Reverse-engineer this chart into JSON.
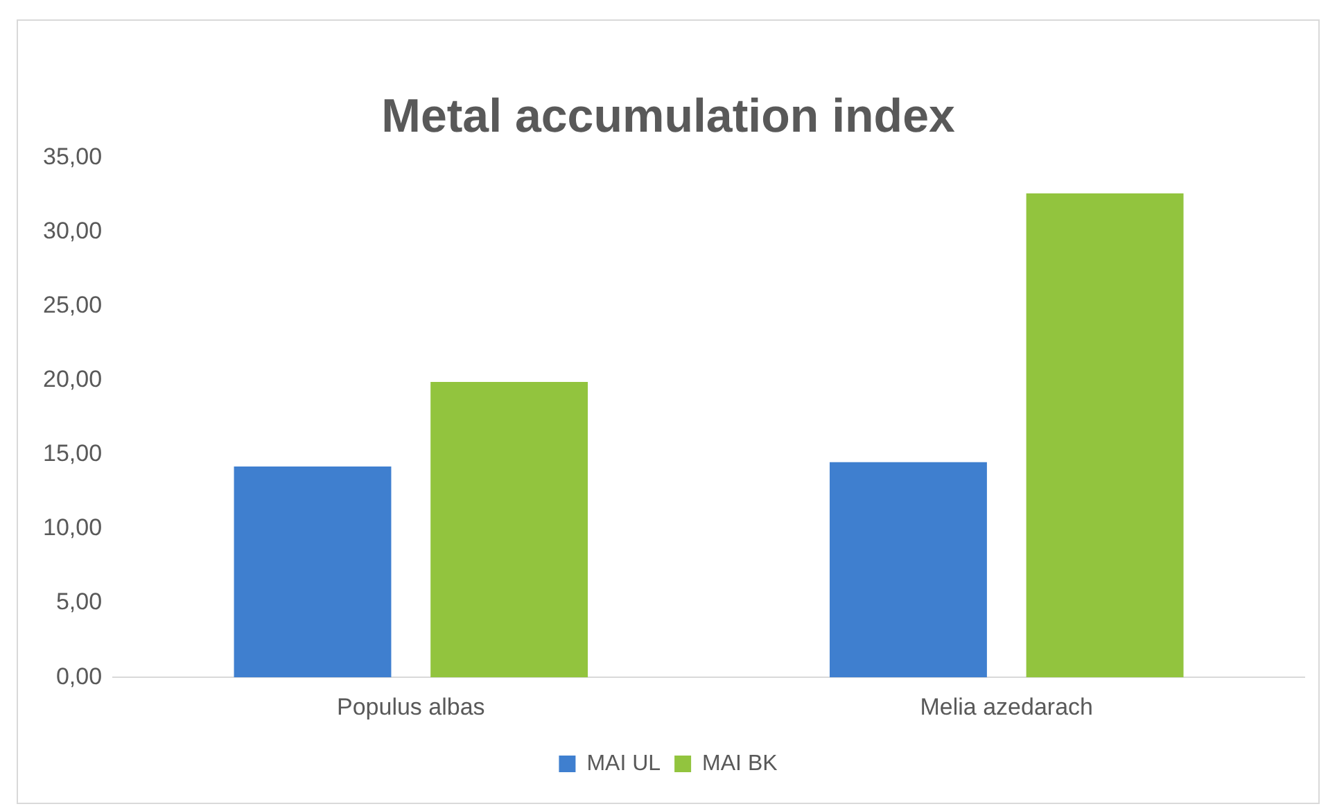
{
  "chart_data": {
    "type": "bar",
    "title": "Metal accumulation index",
    "categories": [
      "Populus albas",
      "Melia azedarach"
    ],
    "series": [
      {
        "name": "MAI UL",
        "color": "#3f7fcf",
        "values": [
          14.2,
          14.5
        ]
      },
      {
        "name": "MAI BK",
        "color": "#92c43e",
        "values": [
          19.9,
          32.6
        ]
      }
    ],
    "ylim": [
      0,
      35
    ],
    "yticks": [
      {
        "value": 0,
        "label": "0,00"
      },
      {
        "value": 5,
        "label": "5,00"
      },
      {
        "value": 10,
        "label": "10,00"
      },
      {
        "value": 15,
        "label": "15,00"
      },
      {
        "value": 20,
        "label": "20,00"
      },
      {
        "value": 25,
        "label": "25,00"
      },
      {
        "value": 30,
        "label": "30,00"
      },
      {
        "value": 35,
        "label": "35,00"
      }
    ],
    "grid": false,
    "legend": "bottom"
  }
}
